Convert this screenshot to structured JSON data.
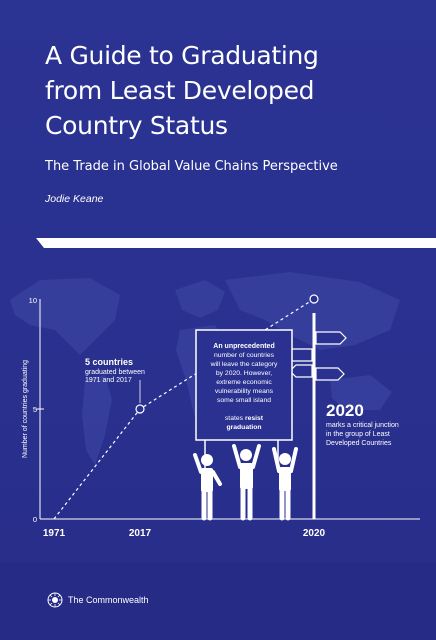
{
  "cover": {
    "title_lines": [
      "A Guide to Graduating",
      "from Least Developed",
      "Country Status"
    ],
    "subtitle": "The Trade in Global Value Chains Perspective",
    "author": "Jodie Keane"
  },
  "chart_data": {
    "type": "line",
    "x": [
      1971,
      2017,
      2020
    ],
    "series": [
      {
        "values": [
          0,
          5,
          10
        ]
      }
    ],
    "xlabel": "",
    "ylabel": "Number of countries graduating",
    "xticks": [
      "1971",
      "2017",
      "2020"
    ],
    "yticks": [
      "0",
      "5",
      "10"
    ],
    "ylim": [
      0,
      10
    ],
    "grid": false,
    "line_style": "dashed",
    "annotations": {
      "a2017": {
        "bold": "5 countries",
        "lines": [
          "graduated between",
          "1971 and 2017"
        ]
      },
      "sign": {
        "bold": "An unprecedented",
        "lines": [
          "number of countries",
          "will leave the category",
          "by 2020. However,",
          "extreme economic",
          "vulnerability means",
          "some small island"
        ],
        "line8_start": "states ",
        "line8_bold": "resist",
        "line9_bold": "graduation"
      },
      "a2020": {
        "year": "2020",
        "lines": [
          "marks a critical junction",
          "in the group of Least",
          "Developed Countries"
        ]
      }
    }
  },
  "footer": {
    "org_name": "The Commonwealth"
  },
  "colors": {
    "background": "#2a3190",
    "map": "#3a43a0",
    "text": "#ffffff"
  },
  "icons": [
    "signpost-icon",
    "protester-icon",
    "commonwealth-logo-icon"
  ]
}
